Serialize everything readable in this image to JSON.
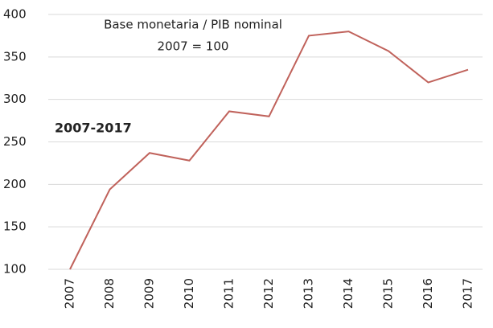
{
  "chart_data": {
    "type": "line",
    "annotations": [
      "Base monetaria / PIB nominal",
      "2007 = 100",
      "2007-2017"
    ],
    "categories": [
      "2007",
      "2008",
      "2009",
      "2010",
      "2011",
      "2012",
      "2013",
      "2014",
      "2015",
      "2016",
      "2017"
    ],
    "series": [
      {
        "color": "#c0625b",
        "values": [
          100,
          194,
          237,
          228,
          286,
          280,
          375,
          380,
          357,
          320,
          335
        ]
      }
    ],
    "ylim": [
      100,
      400
    ],
    "yticks": [
      100,
      150,
      200,
      250,
      300,
      350,
      400
    ],
    "grid": true
  }
}
